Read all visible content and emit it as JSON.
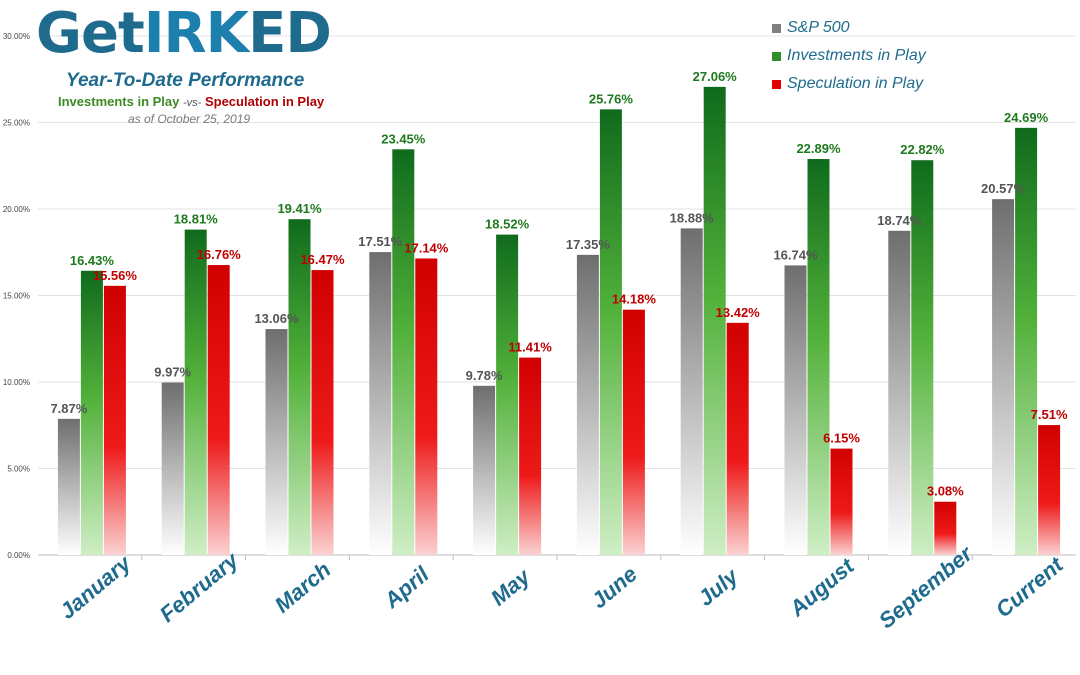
{
  "brand": {
    "logo_left": "Get",
    "logo_mid": "IRK",
    "logo_right": "ED",
    "subtitle": "Year-To-Date Performance",
    "versus_inv": "Investments in Play",
    "versus_vs": "-vs-",
    "versus_spec": "Speculation in Play",
    "as_of": "as of October 25, 2019"
  },
  "colors": {
    "sp500": "#7f7f7f",
    "investments": "#2f8f2a",
    "speculation": "#e00000",
    "category_label": "#1f6b8e"
  },
  "chart_data": {
    "type": "bar",
    "categories": [
      "January",
      "February",
      "March",
      "April",
      "May",
      "June",
      "July",
      "August",
      "September",
      "Current"
    ],
    "series": [
      {
        "name": "S&P 500",
        "values": [
          7.87,
          9.97,
          13.06,
          17.51,
          9.78,
          17.35,
          18.88,
          16.74,
          18.74,
          20.57
        ],
        "labels": [
          "7.87%",
          "9.97%",
          "13.06%",
          "17.51%",
          "9.78%",
          "17.35%",
          "18.88%",
          "16.74%",
          "18.74%",
          "20.57%"
        ]
      },
      {
        "name": "Investments in Play",
        "values": [
          16.43,
          18.81,
          19.41,
          23.45,
          18.52,
          25.76,
          27.06,
          22.89,
          22.82,
          24.69
        ],
        "labels": [
          "16.43%",
          "18.81%",
          "19.41%",
          "23.45%",
          "18.52%",
          "25.76%",
          "27.06%",
          "22.89%",
          "22.82%",
          "24.69%"
        ]
      },
      {
        "name": "Speculation in Play",
        "values": [
          15.56,
          16.76,
          16.47,
          17.14,
          11.41,
          14.18,
          13.42,
          6.15,
          3.08,
          7.51
        ],
        "labels": [
          "15.56%",
          "16.76%",
          "16.47%",
          "17.14%",
          "11.41%",
          "14.18%",
          "13.42%",
          "6.15%",
          "3.08%",
          "7.51%"
        ]
      }
    ],
    "y_ticks": [
      "0.00%",
      "5.00%",
      "10.00%",
      "15.00%",
      "20.00%",
      "25.00%",
      "30.00%"
    ],
    "ylim": [
      0,
      30
    ],
    "grid": true,
    "legend_position": "top-right"
  }
}
